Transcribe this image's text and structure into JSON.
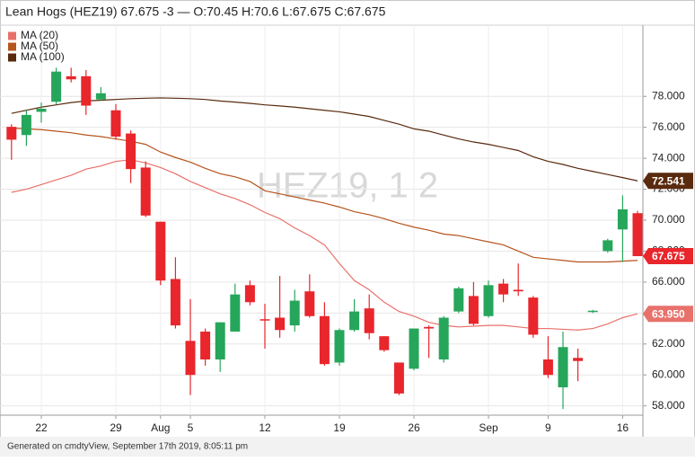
{
  "chart_data": {
    "type": "candlestick",
    "title": "Lean Hogs (HEZ19) 67.675 -3 — O:70.45 H:70.6 L:67.675 C:67.675",
    "watermark": "HEZ19, 1 2",
    "footer": "Generated on cmdtyView, September 17th 2019, 8:05:11 pm",
    "categories": [
      null,
      null,
      "22",
      null,
      null,
      null,
      null,
      "29",
      null,
      null,
      "Aug",
      null,
      "5",
      null,
      null,
      null,
      null,
      "12",
      null,
      null,
      null,
      null,
      "19",
      null,
      null,
      null,
      null,
      "26",
      null,
      null,
      null,
      null,
      "Sep",
      null,
      null,
      null,
      "9",
      null,
      null,
      null,
      null,
      "16",
      null
    ],
    "ylim": [
      57.4,
      82.6
    ],
    "yticks": [
      {
        "value": 58,
        "label": "58.000"
      },
      {
        "value": 60,
        "label": "60.000"
      },
      {
        "value": 62,
        "label": "62.000"
      },
      {
        "value": 64,
        "label": "64.000"
      },
      {
        "value": 66,
        "label": "66.000"
      },
      {
        "value": 68,
        "label": "68.000"
      },
      {
        "value": 70,
        "label": "70.000"
      },
      {
        "value": 72,
        "label": "72.000"
      },
      {
        "value": 74,
        "label": "74.000"
      },
      {
        "value": 76,
        "label": "76.000"
      },
      {
        "value": 78,
        "label": "78.000"
      }
    ],
    "grid": true,
    "up_color": "#26a65b",
    "down_color": "#e8262c",
    "series": [
      {
        "name": "HEZ19",
        "open": [
          76.03,
          75.5,
          77.0,
          77.65,
          79.3,
          79.3,
          77.8,
          77.1,
          75.6,
          73.4,
          69.9,
          66.2,
          62.2,
          62.8,
          61.0,
          62.8,
          65.8,
          63.6,
          63.7,
          63.2,
          65.4,
          63.8,
          60.8,
          62.9,
          64.3,
          62.5,
          60.8,
          60.4,
          63.1,
          61.0,
          64.1,
          65.1,
          63.8,
          65.9,
          65.5,
          65.0,
          61.0,
          59.2,
          61.1,
          64.1,
          68.0,
          69.4,
          70.45
        ],
        "high": [
          76.2,
          77.1,
          77.6,
          79.85,
          79.85,
          79.7,
          78.6,
          77.5,
          75.8,
          73.8,
          69.9,
          67.6,
          64.9,
          63.0,
          63.4,
          65.9,
          66.1,
          64.6,
          66.4,
          65.5,
          66.5,
          64.7,
          63.0,
          64.9,
          65.2,
          62.5,
          60.8,
          63.0,
          63.2,
          63.8,
          65.7,
          66.0,
          66.1,
          66.2,
          67.2,
          65.1,
          62.5,
          62.8,
          61.7,
          64.2,
          68.8,
          71.6,
          70.6
        ],
        "low": [
          73.9,
          74.8,
          76.3,
          77.5,
          78.9,
          76.8,
          77.7,
          75.2,
          72.4,
          70.2,
          65.8,
          63.0,
          58.7,
          60.6,
          60.2,
          62.8,
          64.5,
          61.7,
          62.4,
          62.8,
          63.7,
          60.6,
          60.6,
          62.8,
          62.3,
          61.5,
          58.7,
          60.3,
          61.1,
          60.8,
          64.0,
          63.2,
          63.7,
          64.7,
          65.1,
          62.4,
          59.8,
          57.8,
          59.6,
          64.0,
          67.9,
          67.3,
          67.675
        ],
        "close": [
          75.2,
          76.8,
          77.2,
          79.6,
          79.1,
          77.4,
          78.2,
          75.4,
          73.3,
          70.3,
          66.1,
          63.2,
          60.0,
          61.0,
          63.4,
          65.2,
          64.7,
          63.55,
          62.9,
          64.8,
          63.8,
          60.7,
          62.9,
          64.1,
          62.7,
          61.6,
          58.8,
          63.0,
          63.0,
          63.7,
          65.6,
          63.3,
          65.8,
          65.2,
          65.4,
          62.6,
          60.0,
          61.8,
          60.9,
          64.15,
          68.7,
          70.7,
          67.675
        ]
      }
    ],
    "lines": [
      {
        "name": "MA (20)",
        "color": "#e8716b",
        "values": [
          71.8,
          72.0,
          72.3,
          72.6,
          72.9,
          73.3,
          73.5,
          73.8,
          73.9,
          73.7,
          73.4,
          73.0,
          72.5,
          72.1,
          71.7,
          71.4,
          71.0,
          70.5,
          70.1,
          69.5,
          69.0,
          68.4,
          67.2,
          66.1,
          65.5,
          64.7,
          64.1,
          63.8,
          63.4,
          63.2,
          63.1,
          63.15,
          63.2,
          63.2,
          63.1,
          63.0,
          63.0,
          62.95,
          62.9,
          63.0,
          63.3,
          63.7,
          63.95
        ]
      },
      {
        "name": "MA (50)",
        "color": "#b5541c",
        "values": [
          75.95,
          75.9,
          75.85,
          75.75,
          75.65,
          75.5,
          75.4,
          75.25,
          75.1,
          74.9,
          74.4,
          74.05,
          73.75,
          73.35,
          73.0,
          72.8,
          72.5,
          71.9,
          71.7,
          71.5,
          71.3,
          71.1,
          70.85,
          70.55,
          70.35,
          70.1,
          69.8,
          69.55,
          69.35,
          69.1,
          69.0,
          68.8,
          68.6,
          68.4,
          68.0,
          67.6,
          67.5,
          67.4,
          67.3,
          67.3,
          67.3,
          67.35,
          67.4
        ]
      },
      {
        "name": "MA (100)",
        "color": "#5a2a0e",
        "values": [
          76.9,
          77.1,
          77.3,
          77.45,
          77.6,
          77.7,
          77.75,
          77.8,
          77.85,
          77.88,
          77.9,
          77.88,
          77.85,
          77.8,
          77.7,
          77.63,
          77.55,
          77.45,
          77.38,
          77.3,
          77.2,
          77.1,
          77.0,
          76.85,
          76.7,
          76.45,
          76.2,
          75.9,
          75.75,
          75.5,
          75.25,
          75.05,
          74.9,
          74.7,
          74.5,
          74.1,
          73.8,
          73.6,
          73.35,
          73.15,
          72.95,
          72.75,
          72.541
        ]
      }
    ],
    "price_labels": [
      {
        "value": 72.541,
        "label": "72.541",
        "color": "#5a2a0e"
      },
      {
        "value": 67.675,
        "label": "67.675",
        "color": "#e8262c"
      },
      {
        "value": 63.95,
        "label": "63.950",
        "color": "#e8716b"
      }
    ]
  }
}
